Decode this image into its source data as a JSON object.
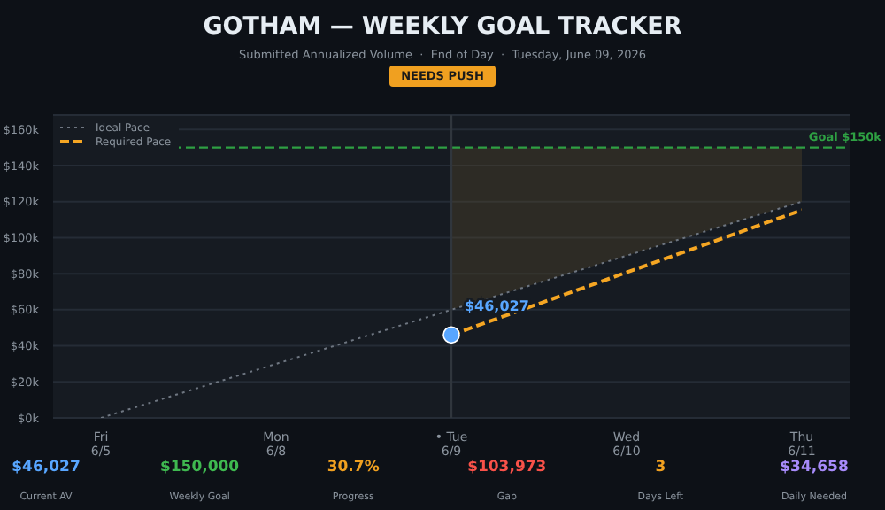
{
  "chart_data": {
    "type": "line",
    "title": "GOTHAM — WEEKLY GOAL TRACKER",
    "subtitle": "Submitted Annualized Volume  ·  End of Day  ·  Tuesday, June 09, 2026",
    "categories": [
      "Fri\n6/5",
      "Mon\n6/8",
      "• Tue\n6/9",
      "Wed\n6/10",
      "Thu\n6/11"
    ],
    "series": [
      {
        "name": "Ideal Pace",
        "color": "#6e7681",
        "line_style": "dotted",
        "values": [
          0,
          30000,
          60000,
          90000,
          120000
        ],
        "lower": [
          null,
          null,
          60000,
          90000,
          120000
        ],
        "upper": [
          null,
          null,
          150000,
          150000,
          150000
        ]
      },
      {
        "name": "Required Pace",
        "color": "#f5a623",
        "line_style": "dashed",
        "values": [
          null,
          null,
          46027,
          80700,
          115300
        ]
      },
      {
        "type": "scatter",
        "color": "#58a6ff",
        "marker": "circle",
        "values": [
          null,
          null,
          46027,
          null,
          null
        ],
        "value_labels": [
          null,
          null,
          "$46,027",
          null,
          null
        ]
      }
    ],
    "ylim": [
      0,
      168000
    ],
    "yticks": [
      {
        "value": 0,
        "label": "$0k"
      },
      {
        "value": 20000,
        "label": "$20k"
      },
      {
        "value": 40000,
        "label": "$40k"
      },
      {
        "value": 60000,
        "label": "$60k"
      },
      {
        "value": 80000,
        "label": "$80k"
      },
      {
        "value": 100000,
        "label": "$100k"
      },
      {
        "value": 120000,
        "label": "$120k"
      },
      {
        "value": 140000,
        "label": "$140k"
      },
      {
        "value": 160000,
        "label": "$160k"
      }
    ],
    "grid": "y",
    "legend": "top left",
    "ref_lines": [
      {
        "axis": "y",
        "value": 150000,
        "label": "Goal $150k",
        "color": "#2ea043",
        "line_style": "dashed"
      },
      {
        "axis": "x",
        "value": "• Tue\n6/9",
        "label": null,
        "color": "#30363d",
        "line_style": "solid"
      }
    ],
    "annotations": [
      "NEEDS PUSH",
      "$46,027",
      "Current AV",
      "$150,000",
      "Weekly Goal",
      "30.7%",
      "Progress",
      "$103,973",
      "Gap",
      "3",
      "Days Left",
      "$34,658",
      "Daily Needed"
    ]
  }
}
